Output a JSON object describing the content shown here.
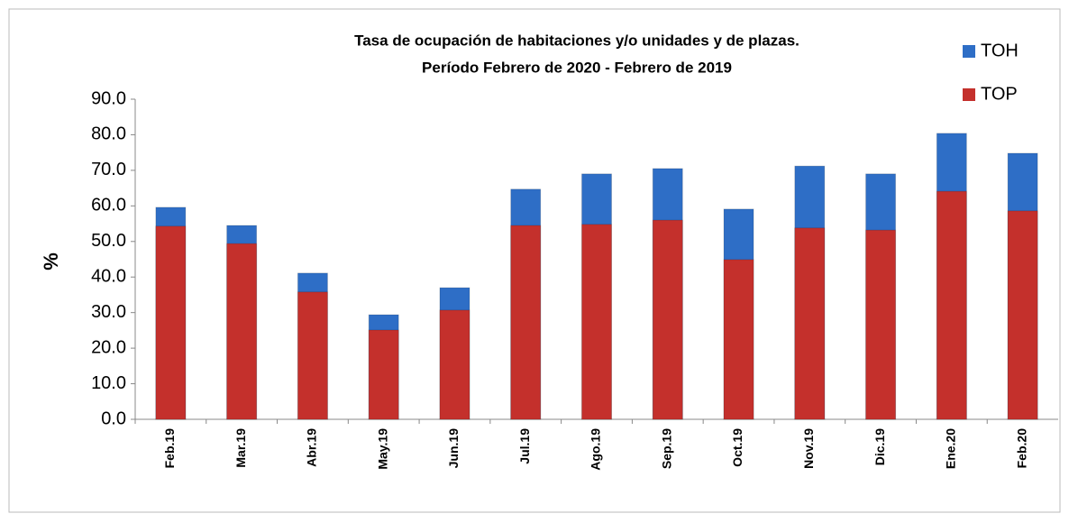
{
  "chart_data": {
    "type": "bar",
    "title": [
      "Tasa  de ocupación de habitaciones y/o unidades y de plazas.",
      "Período Febrero de 2020 - Febrero de 2019"
    ],
    "ylabel": "%",
    "categories": [
      "Feb.19",
      "Mar.19",
      "Abr.19",
      "May.19",
      "Jun.19",
      "Jul.19",
      "Ago.19",
      "Sep.19",
      "Oct.19",
      "Nov.19",
      "Dic.19",
      "Ene.20",
      "Feb.20"
    ],
    "series": [
      {
        "name": "TOH",
        "color": "#2e6ec6",
        "values": [
          59.6,
          54.5,
          41.1,
          29.4,
          37.0,
          64.7,
          69.0,
          70.5,
          59.1,
          71.2,
          69.0,
          80.4,
          74.8
        ]
      },
      {
        "name": "TOP",
        "color": "#c4302c",
        "values": [
          54.3,
          49.4,
          35.8,
          25.1,
          30.7,
          54.5,
          54.8,
          56.0,
          44.9,
          53.8,
          53.2,
          64.1,
          58.6
        ]
      }
    ],
    "ylim": [
      0,
      90
    ],
    "yticks": [
      {
        "value": 0,
        "label": "0.0"
      },
      {
        "value": 10,
        "label": "10.0"
      },
      {
        "value": 20,
        "label": "20.0"
      },
      {
        "value": 30,
        "label": "30.0"
      },
      {
        "value": 40,
        "label": "40.0"
      },
      {
        "value": 50,
        "label": "50.0"
      },
      {
        "value": 60,
        "label": "60.0"
      },
      {
        "value": 70,
        "label": "70.0"
      },
      {
        "value": 80,
        "label": "80.0"
      },
      {
        "value": 90,
        "label": "90.0"
      }
    ],
    "legend": "top-right",
    "grid": false
  }
}
